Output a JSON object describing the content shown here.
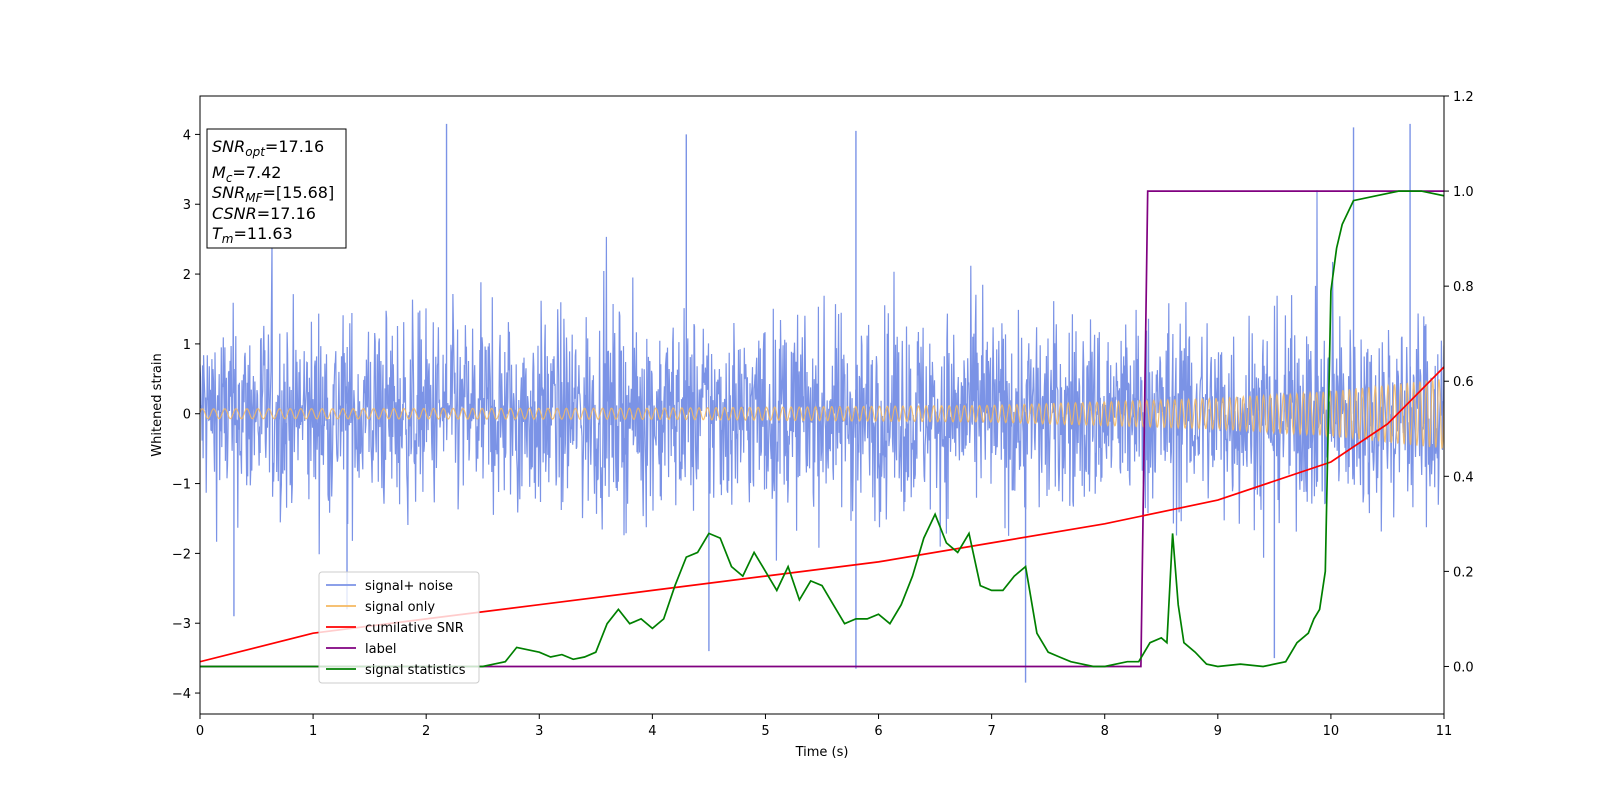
{
  "chart_data": {
    "type": "line",
    "title": "",
    "xlabel": "Time (s)",
    "ylabel": "Whitened strain",
    "xlim": [
      0,
      11
    ],
    "ylim": [
      -4.3,
      4.55
    ],
    "y2lim": [
      -0.1,
      1.2
    ],
    "x_ticks": [
      "0",
      "1",
      "2",
      "3",
      "4",
      "5",
      "6",
      "7",
      "8",
      "9",
      "10",
      "11"
    ],
    "y_ticks": [
      "−4",
      "−3",
      "−2",
      "−1",
      "0",
      "1",
      "2",
      "3",
      "4"
    ],
    "y2_ticks": [
      "0.0",
      "0.2",
      "0.4",
      "0.6",
      "0.8",
      "1.0",
      "1.2"
    ],
    "grid": false,
    "legend_position": "lower-left",
    "annotation": {
      "snr_opt": {
        "main": "SNR",
        "sub": "opt",
        "value": "=17.16"
      },
      "mc": {
        "main": "M",
        "sub": "c",
        "value": "=7.42"
      },
      "snr_mf": {
        "main": "SNR",
        "sub": "MF",
        "value": "=[15.68]"
      },
      "csnr": {
        "main": "CSNR",
        "sub": "",
        "value": "=17.16"
      },
      "tm": {
        "main": "T",
        "sub": "m",
        "value": "=11.63"
      }
    },
    "series": [
      {
        "name": "signal+ noise",
        "axis": "left",
        "color": "#7b93e6",
        "description_values": "dense noisy trace, mostly within ±2.5, spikes to about ±4.2",
        "envelope_typical": 2.2,
        "spikes": [
          [
            2.18,
            4.15
          ],
          [
            4.3,
            4.0
          ],
          [
            5.8,
            4.05
          ],
          [
            10.2,
            4.1
          ],
          [
            10.7,
            4.15
          ],
          [
            7.3,
            -3.85
          ],
          [
            5.8,
            -3.65
          ],
          [
            4.5,
            -3.4
          ],
          [
            9.5,
            -3.5
          ],
          [
            0.3,
            -2.9
          ],
          [
            1.3,
            -2.8
          ]
        ]
      },
      {
        "name": "signal only",
        "axis": "left",
        "color": "#f5b860",
        "amplitude_at": [
          [
            0,
            0.07
          ],
          [
            4,
            0.08
          ],
          [
            7,
            0.12
          ],
          [
            9,
            0.22
          ],
          [
            10,
            0.32
          ],
          [
            11,
            0.5
          ]
        ]
      },
      {
        "name": "cumilative SNR",
        "axis": "right",
        "color": "#ff0000",
        "x": [
          0,
          1,
          2,
          3,
          4,
          5,
          6,
          7,
          8,
          9,
          10,
          10.5,
          11
        ],
        "values": [
          0.01,
          0.07,
          0.1,
          0.13,
          0.16,
          0.19,
          0.22,
          0.26,
          0.3,
          0.35,
          0.43,
          0.51,
          0.63
        ]
      },
      {
        "name": "label",
        "axis": "right",
        "color": "#800080",
        "x": [
          0,
          8.32,
          8.38,
          11
        ],
        "values": [
          0,
          0,
          1,
          1
        ]
      },
      {
        "name": "signal statistics",
        "axis": "right",
        "color": "#008000",
        "x": [
          0,
          2.5,
          2.6,
          2.7,
          2.8,
          2.9,
          3.0,
          3.1,
          3.2,
          3.3,
          3.4,
          3.5,
          3.6,
          3.7,
          3.8,
          3.9,
          4.0,
          4.1,
          4.2,
          4.3,
          4.4,
          4.5,
          4.6,
          4.7,
          4.8,
          4.9,
          5.0,
          5.1,
          5.2,
          5.3,
          5.4,
          5.5,
          5.6,
          5.7,
          5.8,
          5.9,
          6.0,
          6.1,
          6.2,
          6.3,
          6.4,
          6.5,
          6.6,
          6.7,
          6.8,
          6.9,
          7.0,
          7.1,
          7.2,
          7.3,
          7.4,
          7.5,
          7.6,
          7.7,
          7.8,
          7.9,
          8.0,
          8.1,
          8.2,
          8.3,
          8.4,
          8.5,
          8.55,
          8.6,
          8.65,
          8.7,
          8.8,
          8.9,
          9.0,
          9.2,
          9.4,
          9.6,
          9.7,
          9.8,
          9.85,
          9.9,
          9.95,
          10.0,
          10.05,
          10.1,
          10.2,
          10.4,
          10.6,
          10.8,
          11.0
        ],
        "values": [
          0.0,
          0.0,
          0.005,
          0.01,
          0.04,
          0.035,
          0.03,
          0.02,
          0.025,
          0.015,
          0.02,
          0.03,
          0.09,
          0.12,
          0.09,
          0.1,
          0.08,
          0.1,
          0.17,
          0.23,
          0.24,
          0.28,
          0.27,
          0.21,
          0.19,
          0.24,
          0.2,
          0.16,
          0.21,
          0.14,
          0.18,
          0.17,
          0.13,
          0.09,
          0.1,
          0.1,
          0.11,
          0.09,
          0.13,
          0.19,
          0.27,
          0.32,
          0.26,
          0.24,
          0.28,
          0.17,
          0.16,
          0.16,
          0.19,
          0.21,
          0.07,
          0.03,
          0.02,
          0.01,
          0.005,
          0.0,
          0.0,
          0.005,
          0.01,
          0.01,
          0.05,
          0.06,
          0.05,
          0.28,
          0.13,
          0.05,
          0.03,
          0.005,
          0.0,
          0.005,
          0.0,
          0.01,
          0.05,
          0.07,
          0.1,
          0.12,
          0.2,
          0.79,
          0.88,
          0.93,
          0.98,
          0.99,
          1.0,
          1.0,
          0.99
        ]
      }
    ]
  }
}
